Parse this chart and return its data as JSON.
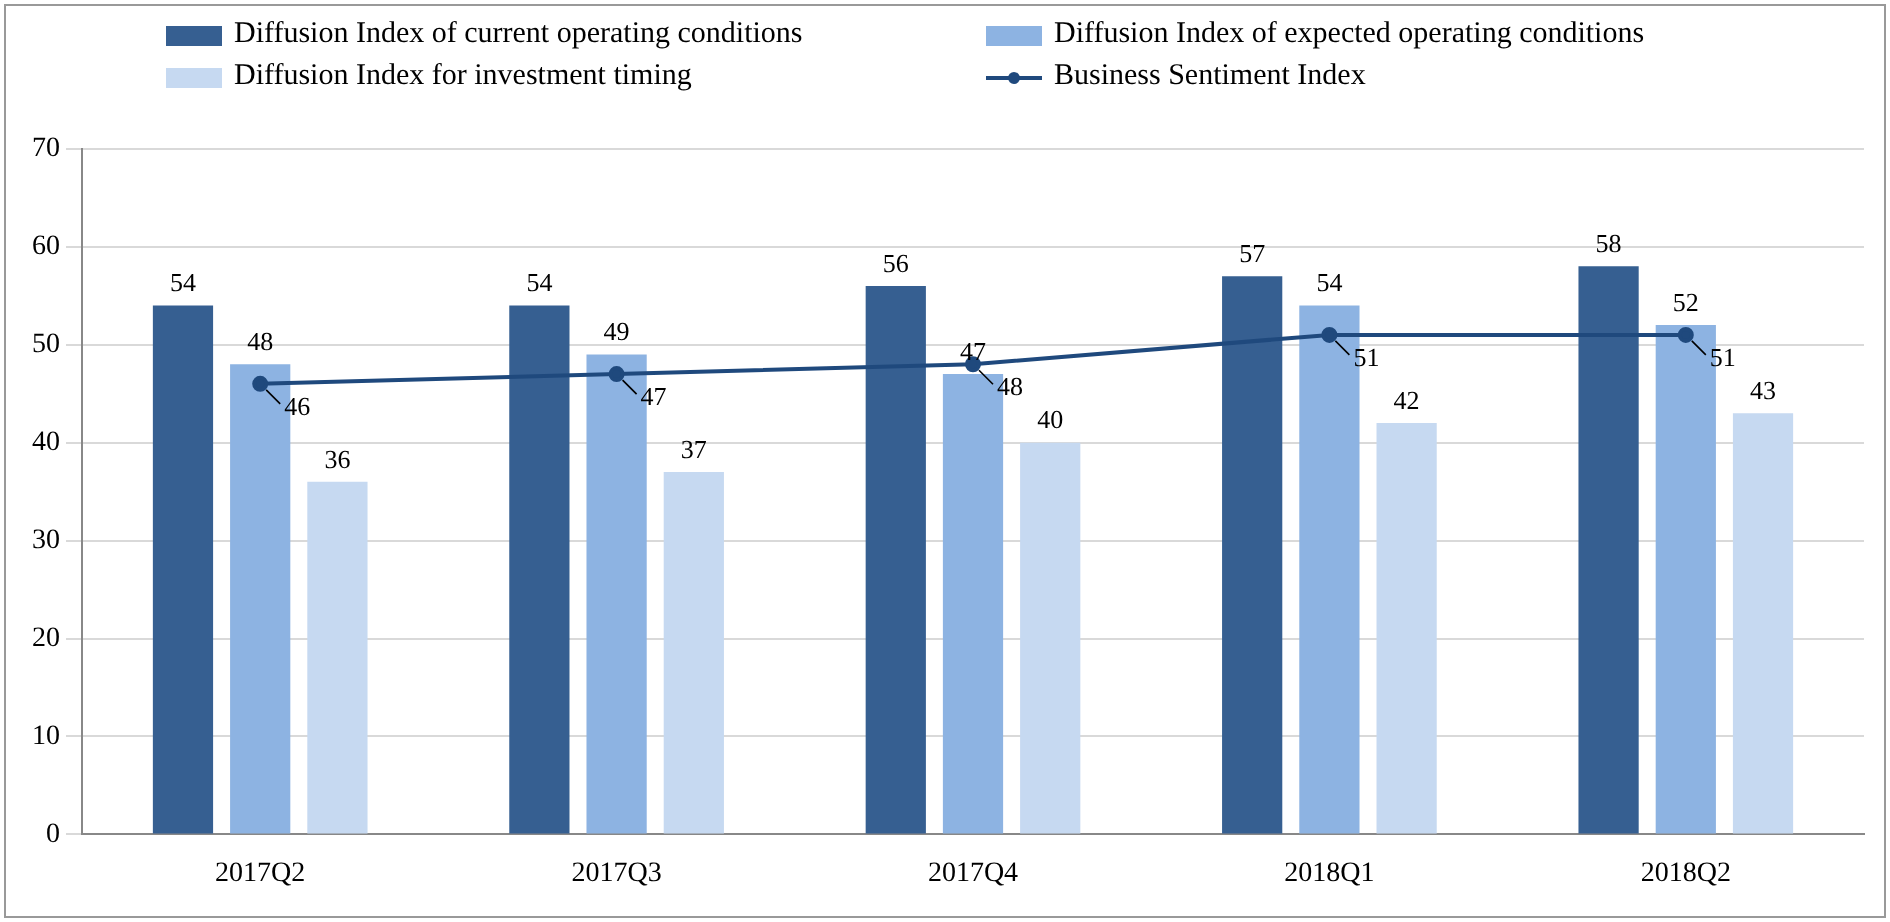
{
  "chart_data": {
    "type": "bar",
    "categories": [
      "2017Q2",
      "2017Q3",
      "2017Q4",
      "2018Q1",
      "2018Q2"
    ],
    "series": [
      {
        "name": "Diffusion Index of current operating conditions",
        "color": "#365f91",
        "values": [
          54,
          54,
          56,
          57,
          58
        ]
      },
      {
        "name": "Diffusion Index of expected operating conditions",
        "color": "#8db3e2",
        "values": [
          48,
          49,
          47,
          54,
          52
        ]
      },
      {
        "name": "Diffusion Index for investment timing",
        "color": "#c6d9f1",
        "values": [
          36,
          37,
          40,
          42,
          43
        ]
      },
      {
        "name": "Business Sentiment Index",
        "type": "line",
        "color": "#1f497d",
        "values": [
          46,
          47,
          48,
          51,
          51
        ],
        "marker": "circle"
      }
    ],
    "ylim": [
      0,
      70
    ],
    "yticks": [
      0,
      10,
      20,
      30,
      40,
      50,
      60,
      70
    ],
    "grid": "y",
    "legend": "top",
    "data_labels": true
  }
}
